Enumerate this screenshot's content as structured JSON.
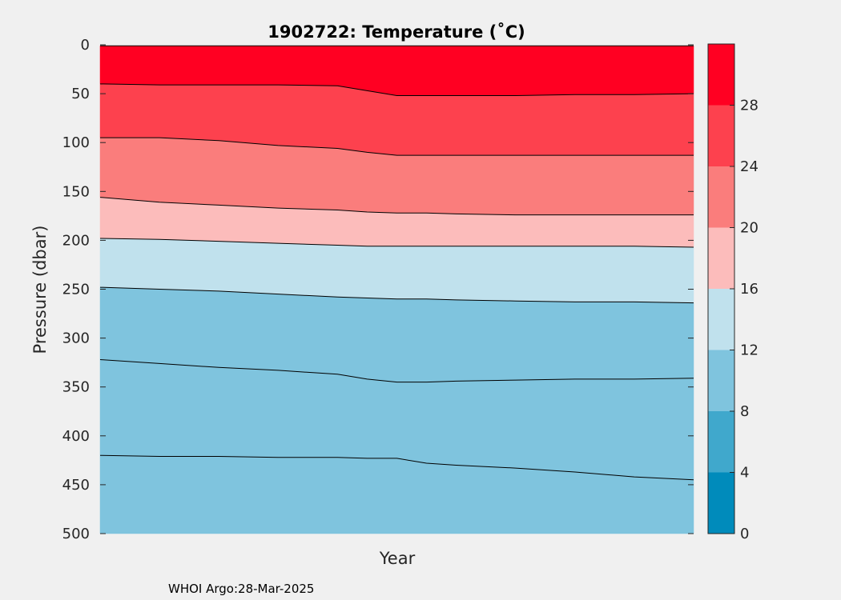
{
  "chart_data": {
    "type": "contour",
    "title": "1902722:  Temperature (˚C)",
    "xlabel": "Year",
    "ylabel": "Pressure (dbar)",
    "ylim": [
      0,
      500
    ],
    "y_reversed": true,
    "yticks": [
      0,
      50,
      100,
      150,
      200,
      250,
      300,
      350,
      400,
      450,
      500
    ],
    "x": [
      0,
      0.1,
      0.2,
      0.3,
      0.4,
      0.45,
      0.5,
      0.55,
      0.6,
      0.7,
      0.8,
      0.9,
      1.0
    ],
    "levels": [
      32,
      28,
      24,
      20,
      16,
      12
    ],
    "colors": [
      "#ff0022",
      "#fd414e",
      "#fa7d7c",
      "#fcbcbb",
      "#c0e1ed",
      "#7fc4de"
    ],
    "boundaries": [
      {
        "depths": [
          1,
          1,
          1,
          1,
          1,
          1,
          1,
          1,
          1,
          1,
          1,
          1,
          1
        ]
      },
      {
        "depths": [
          40,
          41,
          41,
          41,
          42,
          47,
          52,
          52,
          52,
          52,
          51,
          51,
          50
        ]
      },
      {
        "depths": [
          95,
          95,
          98,
          103,
          106,
          110,
          113,
          113,
          113,
          113,
          113,
          113,
          113
        ]
      },
      {
        "depths": [
          156,
          161,
          164,
          167,
          169,
          171,
          172,
          172,
          173,
          174,
          174,
          174,
          174
        ]
      },
      {
        "depths": [
          198,
          199,
          201,
          203,
          205,
          206,
          206,
          206,
          206,
          206,
          206,
          206,
          207
        ]
      },
      {
        "depths": [
          248,
          250,
          252,
          255,
          258,
          259,
          260,
          260,
          261,
          262,
          263,
          263,
          264
        ]
      },
      {
        "depths": [
          322,
          326,
          330,
          333,
          337,
          342,
          345,
          345,
          344,
          343,
          342,
          342,
          341
        ]
      },
      {
        "depths": [
          420,
          421,
          421,
          422,
          422,
          423,
          423,
          428,
          430,
          433,
          437,
          442,
          445
        ]
      }
    ],
    "bottom_color": "#7fc4de",
    "colorbar": {
      "values": [
        0,
        4,
        8,
        12,
        16,
        20,
        24,
        28
      ],
      "segments": [
        {
          "from": 0,
          "to": 4,
          "color": "#008bbb"
        },
        {
          "from": 4,
          "to": 8,
          "color": "#40a8cc"
        },
        {
          "from": 8,
          "to": 12,
          "color": "#7fc4de"
        },
        {
          "from": 12,
          "to": 16,
          "color": "#c0e1ed"
        },
        {
          "from": 16,
          "to": 20,
          "color": "#fcbcbb"
        },
        {
          "from": 20,
          "to": 24,
          "color": "#fa7d7c"
        },
        {
          "from": 24,
          "to": 28,
          "color": "#fd414e"
        },
        {
          "from": 28,
          "to": 32,
          "color": "#ff0022"
        }
      ],
      "range": [
        0,
        32
      ]
    }
  },
  "footer": "WHOI Argo:28-Mar-2025"
}
